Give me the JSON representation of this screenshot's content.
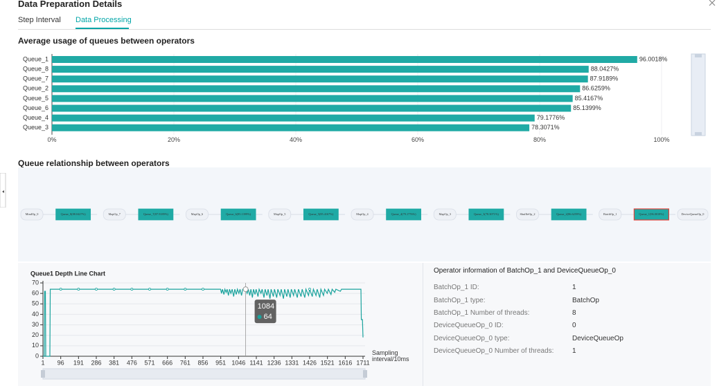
{
  "header": {
    "title": "Data Preparation Details",
    "tabs": [
      "Step Interval",
      "Data Processing"
    ],
    "active_tab": 1
  },
  "sections": [
    "Average usage of queues between operators",
    "Queue relationship between operators"
  ],
  "chart_data": [
    {
      "type": "hbar",
      "categories": [
        "Queue_1",
        "Queue_8",
        "Queue_7",
        "Queue_2",
        "Queue_5",
        "Queue_6",
        "Queue_4",
        "Queue_3"
      ],
      "values": [
        96.0018,
        88.0427,
        87.9189,
        86.6259,
        85.4167,
        85.1399,
        79.1776,
        78.3071
      ],
      "value_labels": [
        "96.0018%",
        "88.0427%",
        "87.9189%",
        "86.6259%",
        "85.4167%",
        "85.1399%",
        "79.1776%",
        "78.3071%"
      ],
      "color": "#20aaa5",
      "xlim": [
        0,
        100
      ],
      "xticks": [
        {
          "value": 0,
          "label": "0%"
        },
        {
          "value": 20,
          "label": "20%"
        },
        {
          "value": 40,
          "label": "40%"
        },
        {
          "value": 60,
          "label": "60%"
        },
        {
          "value": 80,
          "label": "80%"
        },
        {
          "value": 100,
          "label": "100%"
        }
      ],
      "grid": true
    },
    {
      "type": "line",
      "title": "Queue1 Depth Line Chart",
      "x_label": "Sampling interval/10ms",
      "x": [
        1,
        8,
        10,
        14,
        16,
        38,
        40,
        96,
        191,
        286,
        381,
        476,
        571,
        666,
        761,
        856,
        950,
        955,
        960,
        968,
        973,
        980,
        985,
        992,
        998,
        1005,
        1012,
        1020,
        1026,
        1034,
        1040,
        1048,
        1054,
        1062,
        1068,
        1084,
        1092,
        1098,
        1106,
        1112,
        1120,
        1126,
        1134,
        1140,
        1150,
        1156,
        1166,
        1172,
        1182,
        1188,
        1198,
        1204,
        1214,
        1220,
        1232,
        1238,
        1250,
        1256,
        1268,
        1274,
        1286,
        1292,
        1304,
        1310,
        1322,
        1328,
        1340,
        1346,
        1360,
        1366,
        1380,
        1386,
        1400,
        1406,
        1420,
        1426,
        1440,
        1446,
        1460,
        1466,
        1480,
        1486,
        1500,
        1506,
        1520,
        1526,
        1540,
        1546,
        1560,
        1566,
        1590,
        1596,
        1700,
        1702,
        1708,
        1711
      ],
      "values": [
        0,
        0,
        62,
        62,
        0,
        0,
        64,
        64,
        64,
        64,
        64,
        64,
        64,
        64,
        64,
        64,
        64,
        60,
        64,
        59,
        64,
        61,
        64,
        58,
        64,
        60,
        64,
        57,
        64,
        59,
        64,
        60,
        64,
        58,
        64,
        64,
        60,
        64,
        58,
        64,
        56,
        64,
        59,
        64,
        57,
        64,
        60,
        64,
        56,
        64,
        58,
        64,
        55,
        64,
        57,
        64,
        56,
        64,
        58,
        64,
        55,
        64,
        57,
        64,
        56,
        64,
        58,
        64,
        56,
        64,
        57,
        64,
        56,
        64,
        58,
        64,
        57,
        64,
        58,
        64,
        56,
        64,
        58,
        64,
        60,
        64,
        59,
        64,
        61,
        64,
        62,
        64,
        64,
        35,
        35,
        18
      ],
      "color": "#1aa39d",
      "xlim": [
        1,
        1711
      ],
      "xticks": [
        1,
        96,
        191,
        286,
        381,
        476,
        571,
        666,
        761,
        856,
        951,
        1046,
        1141,
        1236,
        1331,
        1426,
        1521,
        1616,
        1711
      ],
      "ylim": [
        0,
        70
      ],
      "yticks": [
        0,
        10,
        20,
        30,
        40,
        50,
        60,
        70
      ],
      "tooltip": {
        "x": 1084,
        "value": 64
      }
    }
  ],
  "flow": {
    "selected": 15,
    "nodes": [
      {
        "label": "MindOp_0",
        "kind": "op"
      },
      {
        "label": "Queue_8(88.0427%)",
        "kind": "queue"
      },
      {
        "label": "MapOp_7",
        "kind": "op"
      },
      {
        "label": "Queue_7(87.9189%)",
        "kind": "queue"
      },
      {
        "label": "MapOp_6",
        "kind": "op"
      },
      {
        "label": "Queue_6(85.1399%)",
        "kind": "queue"
      },
      {
        "label": "MapOp_5",
        "kind": "op"
      },
      {
        "label": "Queue_5(85.4167%)",
        "kind": "queue"
      },
      {
        "label": "MapOp_4",
        "kind": "op"
      },
      {
        "label": "Queue_4(79.1776%)",
        "kind": "queue"
      },
      {
        "label": "MapOp_3",
        "kind": "op"
      },
      {
        "label": "Queue_3(78.3071%)",
        "kind": "queue"
      },
      {
        "label": "ShuffleOp_2",
        "kind": "op"
      },
      {
        "label": "Queue_2(86.6259%)",
        "kind": "queue"
      },
      {
        "label": "BatchOp_1",
        "kind": "op"
      },
      {
        "label": "Queue_1(96.0018%)",
        "kind": "queue"
      },
      {
        "label": "DeviceQueueOp_0",
        "kind": "op"
      }
    ]
  },
  "operator_info": {
    "title": "Operator information of BatchOp_1 and DeviceQueueOp_0",
    "rows": [
      [
        "BatchOp_1 ID:",
        "1"
      ],
      [
        "BatchOp_1 type:",
        "BatchOp"
      ],
      [
        "BatchOp_1 Number of threads:",
        "8"
      ],
      [
        "DeviceQueueOp_0 ID:",
        "0"
      ],
      [
        "DeviceQueueOp_0 type:",
        "DeviceQueueOp"
      ],
      [
        "DeviceQueueOp_0 Number of threads:",
        "1"
      ]
    ]
  }
}
